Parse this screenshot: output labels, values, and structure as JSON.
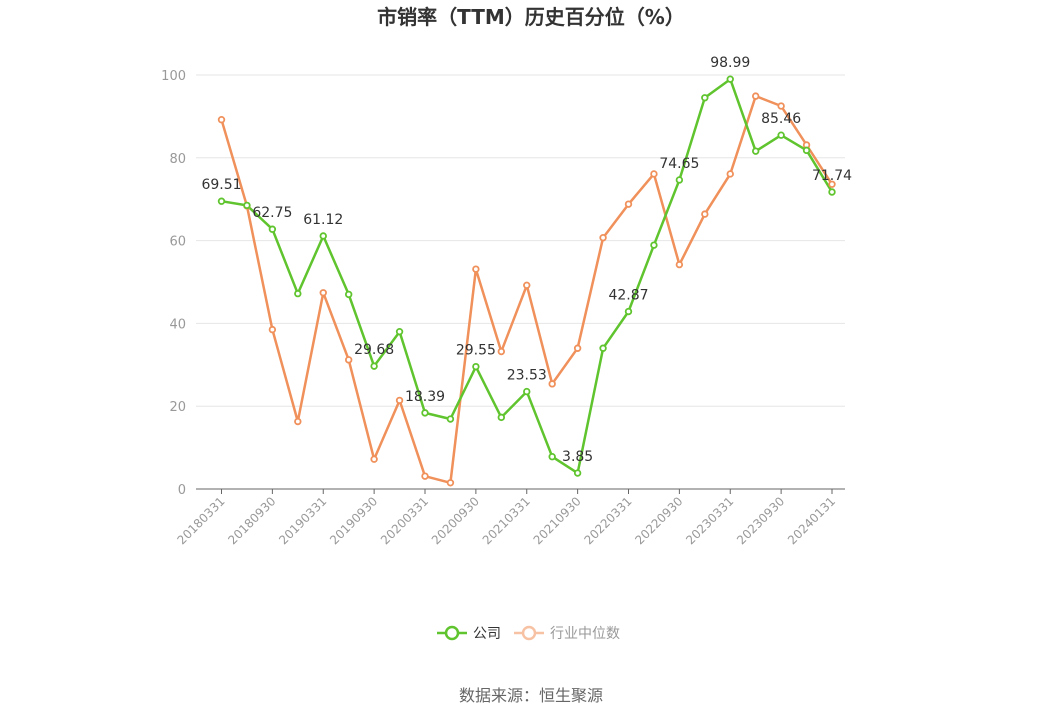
{
  "chart_data": {
    "type": "line",
    "title": "市销率（TTM）历史百分位（%）",
    "source": "数据来源：恒生聚源",
    "ylim": [
      0,
      100
    ],
    "yticks": [
      0,
      20,
      40,
      60,
      80,
      100
    ],
    "x": [
      "20180331",
      "20180630",
      "20180930",
      "20181231",
      "20190331",
      "20190630",
      "20190930",
      "20191231",
      "20200331",
      "20200630",
      "20200930",
      "20201231",
      "20210331",
      "20210630",
      "20210930",
      "20211231",
      "20220331",
      "20220630",
      "20220930",
      "20221231",
      "20230331",
      "20230630",
      "20230930",
      "20231231",
      "20240131"
    ],
    "xtick_labels": [
      "20180331",
      "20180930",
      "20190331",
      "20190930",
      "20200331",
      "20200930",
      "20210331",
      "20210930",
      "20220331",
      "20220930",
      "20230331",
      "20230930",
      "20240131"
    ],
    "grid": true,
    "legend_position": "bottom-center",
    "series": [
      {
        "name": "公司",
        "color": "#5fc42e",
        "values": [
          69.51,
          68.5,
          62.75,
          47.2,
          61.12,
          47.0,
          29.68,
          38.0,
          18.39,
          16.9,
          29.55,
          17.3,
          23.53,
          7.8,
          3.85,
          34.0,
          42.87,
          58.9,
          74.65,
          94.5,
          98.99,
          81.6,
          85.46,
          81.8,
          71.74
        ],
        "labels": {
          "0": "69.51",
          "2": "62.75",
          "4": "61.12",
          "6": "29.68",
          "8": "18.39",
          "10": "29.55",
          "12": "23.53",
          "14": "3.85",
          "16": "42.87",
          "18": "74.65",
          "20": "98.99",
          "22": "85.46",
          "24": "71.74"
        }
      },
      {
        "name": "行业中位数",
        "color": "#f0905a",
        "values": [
          89.2,
          68.4,
          38.5,
          16.3,
          47.4,
          31.2,
          7.2,
          21.4,
          3.1,
          1.5,
          53.1,
          33.2,
          49.2,
          25.4,
          34.0,
          60.7,
          68.8,
          76.1,
          54.2,
          66.4,
          76.1,
          94.9,
          92.5,
          83.1,
          73.6
        ]
      }
    ]
  }
}
